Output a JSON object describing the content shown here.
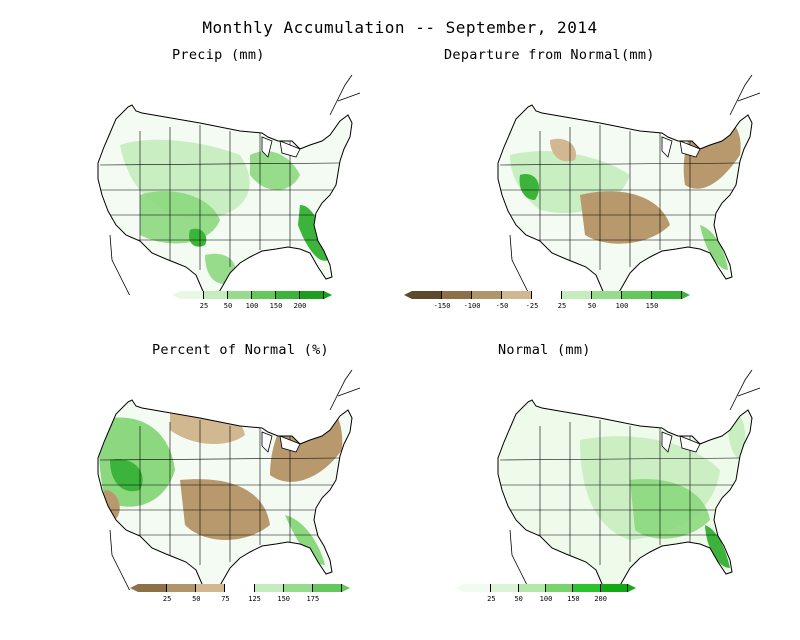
{
  "title": "Monthly Accumulation -- September, 2014",
  "panels": [
    {
      "id": "precip",
      "title": "Precip (mm)",
      "legend": {
        "ticks": [
          "25",
          "50",
          "100",
          "150",
          "200"
        ],
        "colors": [
          "#e8f8e4",
          "#c4ecbc",
          "#96dc8c",
          "#66c85c",
          "#3cb43c",
          "#1e9e1e"
        ]
      }
    },
    {
      "id": "departure",
      "title": "Departure from Normal(mm)",
      "legend": {
        "ticks": [
          "-150",
          "-100",
          "-50",
          "-25",
          "25",
          "50",
          "100",
          "150"
        ],
        "colors": [
          "#5e4a2a",
          "#8c7048",
          "#b0946a",
          "#d2b890",
          "#ffffff",
          "#c4ecbc",
          "#96dc8c",
          "#66c85c",
          "#3cb43c"
        ]
      }
    },
    {
      "id": "percent",
      "title": "Percent of Normal (%)",
      "legend": {
        "ticks": [
          "25",
          "50",
          "75",
          "125",
          "150",
          "175"
        ],
        "colors": [
          "#8c7048",
          "#b0946a",
          "#d2b890",
          "#ffffff",
          "#c4ecbc",
          "#96dc8c",
          "#66c85c"
        ]
      }
    },
    {
      "id": "normal",
      "title": "Normal (mm)",
      "legend": {
        "ticks": [
          "25",
          "50",
          "100",
          "150",
          "200"
        ],
        "colors": [
          "#f2fbef",
          "#dcf4d6",
          "#b4e8aa",
          "#78d46c",
          "#2cc42c",
          "#14a814"
        ]
      }
    }
  ],
  "map_colors": {
    "light_green": "#c4ecbc",
    "mid_green": "#8cd87e",
    "dark_green": "#3cb43c",
    "deep_green": "#1e9e1e",
    "tan": "#b8996d",
    "light_tan": "#d2b890",
    "boundary": "#000000"
  }
}
